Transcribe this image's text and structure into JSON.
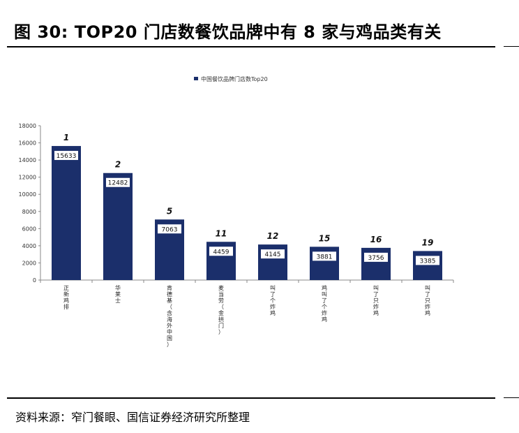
{
  "figure": {
    "title": "图 30: TOP20 门店数餐饮品牌中有 8 家与鸡品类有关",
    "source": "资料来源：窄门餐眼、国信证券经济研究所整理"
  },
  "colors": {
    "bar": "#1b2f6b",
    "label_bg": "#ffffff",
    "axis": "#888888"
  },
  "chart_data": {
    "type": "bar",
    "title": "",
    "legend": {
      "entries": [
        "中国餐饮品牌门店数Top20"
      ],
      "placement": "top-center"
    },
    "xlabel": "",
    "ylabel": "",
    "ylim": [
      0,
      18000
    ],
    "yticks": [
      0,
      2000,
      4000,
      6000,
      8000,
      10000,
      12000,
      14000,
      16000,
      18000
    ],
    "grid": false,
    "categories": [
      "正新鸡排",
      "华莱士",
      "肯德基（含海外中国）",
      "麦当劳（金拱门）",
      "叫了个炸鸡",
      "鸡叫了个炸鸡",
      "叫了只炸鸡",
      "叫了只炸鸡"
    ],
    "ranks": [
      "1",
      "2",
      "5",
      "11",
      "12",
      "15",
      "16",
      "19"
    ],
    "series": [
      {
        "name": "中国餐饮品牌门店数Top20",
        "values": [
          15633,
          12482,
          7063,
          4459,
          4145,
          3881,
          3756,
          3385
        ]
      }
    ]
  }
}
